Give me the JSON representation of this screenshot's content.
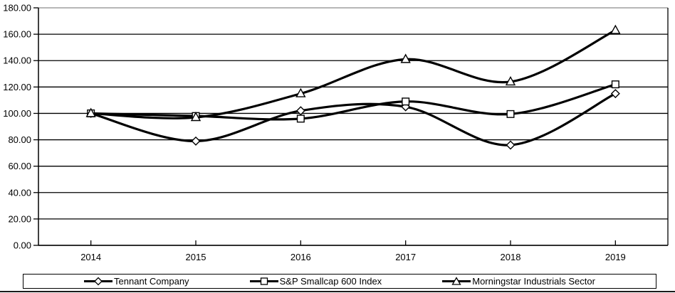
{
  "chart_data": {
    "type": "line",
    "x": [
      "2014",
      "2015",
      "2016",
      "2017",
      "2018",
      "2019"
    ],
    "series": [
      {
        "name": "Tennant Company",
        "marker": "diamond",
        "values": [
          100.0,
          79.0,
          102.0,
          105.0,
          76.0,
          115.0
        ]
      },
      {
        "name": "S&P Smallcap 600 Index",
        "marker": "square",
        "values": [
          100.0,
          98.0,
          96.0,
          109.0,
          99.5,
          122.0
        ]
      },
      {
        "name": "Morningstar Industrials Sector",
        "marker": "triangle",
        "values": [
          100.0,
          97.0,
          115.0,
          141.0,
          124.0,
          163.0
        ]
      }
    ],
    "title": "",
    "xlabel": "",
    "ylabel": "",
    "ylim": [
      0,
      180
    ],
    "ytick_step": 20,
    "ytick_labels": [
      "180.00",
      "160.00",
      "140.00",
      "120.00",
      "100.00",
      "80.00",
      "60.00",
      "40.00",
      "20.00",
      "0.00"
    ],
    "grid": true,
    "smoothed": true,
    "legend_position": "bottom",
    "colors": {
      "line": "#000000",
      "marker_fill": "#ffffff",
      "grid": "#000000",
      "top_gridline": "#8c8c8c",
      "axis": "#000000",
      "text": "#000000",
      "background": "#ffffff",
      "legend_border": "#000000"
    }
  }
}
